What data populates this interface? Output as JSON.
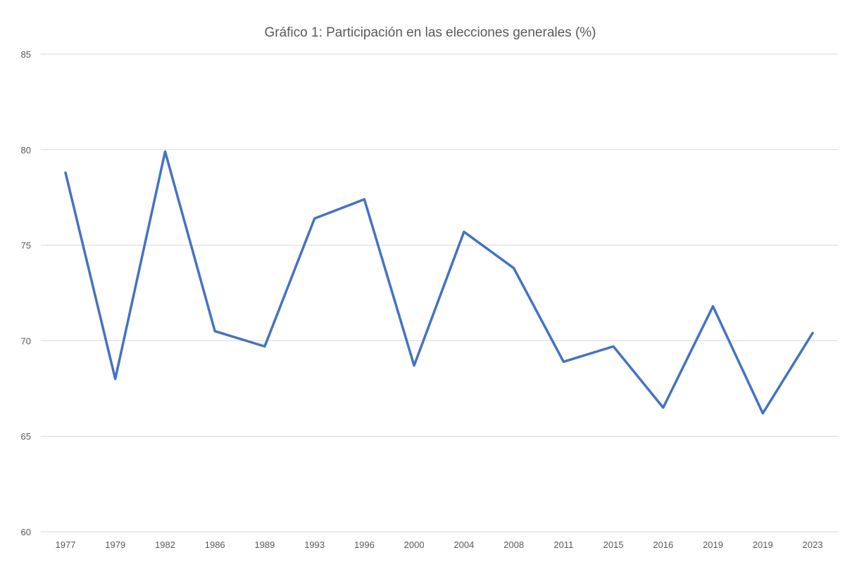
{
  "chart_data": {
    "type": "line",
    "title": "Gráfico 1: Participación en las elecciones generales (%)",
    "xlabel": "",
    "ylabel": "",
    "categories": [
      "1977",
      "1979",
      "1982",
      "1986",
      "1989",
      "1993",
      "1996",
      "2000",
      "2004",
      "2008",
      "2011",
      "2015",
      "2016",
      "2019",
      "2019",
      "2023"
    ],
    "series": [
      {
        "color": "#4472c4",
        "values": [
          78.8,
          68.0,
          79.9,
          70.5,
          69.7,
          76.4,
          77.4,
          68.7,
          75.7,
          73.8,
          68.9,
          69.7,
          66.5,
          71.8,
          66.2,
          70.4
        ]
      }
    ],
    "ylim": [
      60,
      85
    ],
    "yticks": [
      "60",
      "65",
      "70",
      "75",
      "80",
      "85"
    ],
    "grid": "horizontal",
    "legend": "none"
  }
}
